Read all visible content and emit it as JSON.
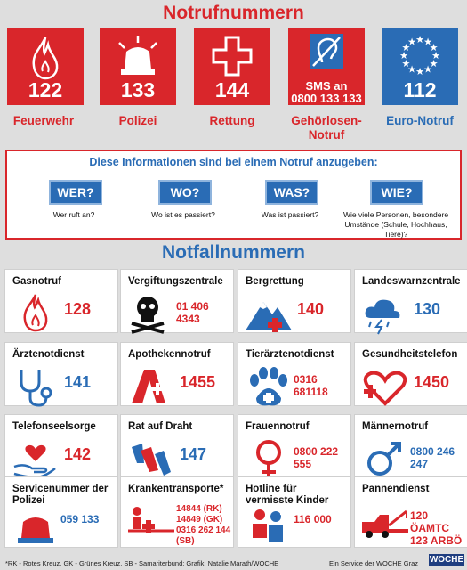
{
  "title_emergency": "Notrufnummern",
  "emergency": [
    {
      "number": "122",
      "label": "Feuerwehr",
      "icon": "flame-icon",
      "bg": "#d9262b",
      "label_color": "#d9262b"
    },
    {
      "number": "133",
      "label": "Polizei",
      "icon": "siren-icon",
      "bg": "#d9262b",
      "label_color": "#d9262b"
    },
    {
      "number": "144",
      "label": "Rettung",
      "icon": "cross-icon",
      "bg": "#d9262b",
      "label_color": "#d9262b"
    },
    {
      "sms": "SMS an",
      "number": "0800 133 133",
      "label": "Gehörlosen-Notruf",
      "icon": "hearing-impaired-icon",
      "bg": "#d9262b",
      "label_color": "#d9262b"
    },
    {
      "number": "112",
      "label": "Euro-Notruf",
      "icon": "eu-stars-icon",
      "bg": "#2a6cb5",
      "label_color": "#2a6cb5"
    }
  ],
  "info": {
    "heading": "Diese Informationen sind bei einem Notruf anzugeben:",
    "questions": [
      {
        "q": "WER?",
        "sub": "Wer ruft an?"
      },
      {
        "q": "WO?",
        "sub": "Wo ist es passiert?"
      },
      {
        "q": "WAS?",
        "sub": "Was ist passiert?"
      },
      {
        "q": "WIE?",
        "sub": "Wie viele Personen, besondere Umstände (Schule, Hochhaus, Tiere)?"
      }
    ]
  },
  "title_hotlines": "Notfallnummern",
  "hotlines": [
    {
      "title": "Gasnotruf",
      "number": "128",
      "icon": "flame-icon"
    },
    {
      "title": "Vergiftungszentrale",
      "number": "01 406 4343",
      "icon": "skull-icon"
    },
    {
      "title": "Bergrettung",
      "number": "140",
      "icon": "mountain-icon"
    },
    {
      "title": "Landeswarnzentrale",
      "number": "130",
      "icon": "storm-cloud-icon"
    },
    {
      "title": "Ärztenotdienst",
      "number": "141",
      "icon": "stethoscope-icon"
    },
    {
      "title": "Apothekennotruf",
      "number": "1455",
      "icon": "pharmacy-icon"
    },
    {
      "title": "Tierärztenotdienst",
      "number": "0316 681118",
      "icon": "paw-icon"
    },
    {
      "title": "Gesundheitstelefon",
      "number": "1450",
      "icon": "heart-cross-icon"
    },
    {
      "title": "Telefonseelsorge",
      "number": "142",
      "icon": "heart-hand-icon"
    },
    {
      "title": "Rat auf Draht",
      "number": "147",
      "icon": "hands-icon"
    },
    {
      "title": "Frauennotruf",
      "number": "0800 222 555",
      "icon": "female-icon"
    },
    {
      "title": "Männernotruf",
      "number": "0800 246 247",
      "icon": "male-icon"
    },
    {
      "title": "Servicenummer der Polizei",
      "number": "059 133",
      "icon": "siren-icon"
    },
    {
      "title": "Krankentransporte*",
      "lines": [
        "14844 (RK)",
        "14849 (GK)",
        "0316 262 144 (SB)"
      ],
      "icon": "stretcher-icon"
    },
    {
      "title": "Hotline für vermisste Kinder",
      "number": "116 000",
      "icon": "children-icon"
    },
    {
      "title": "Pannendienst",
      "lines": [
        "120 ÖAMTC",
        "123 ARBÖ"
      ],
      "icon": "tow-truck-icon"
    }
  ],
  "footer_left": "*RK - Rotes Kreuz, GK - Grünes Kreuz, SB - Samariterbund; Grafik: Natalie Marath/WOCHE",
  "footer_right": "Ein Service der WOCHE Graz",
  "logo": "WOCHE",
  "colors": {
    "red": "#d9262b",
    "blue": "#2a6cb5"
  }
}
